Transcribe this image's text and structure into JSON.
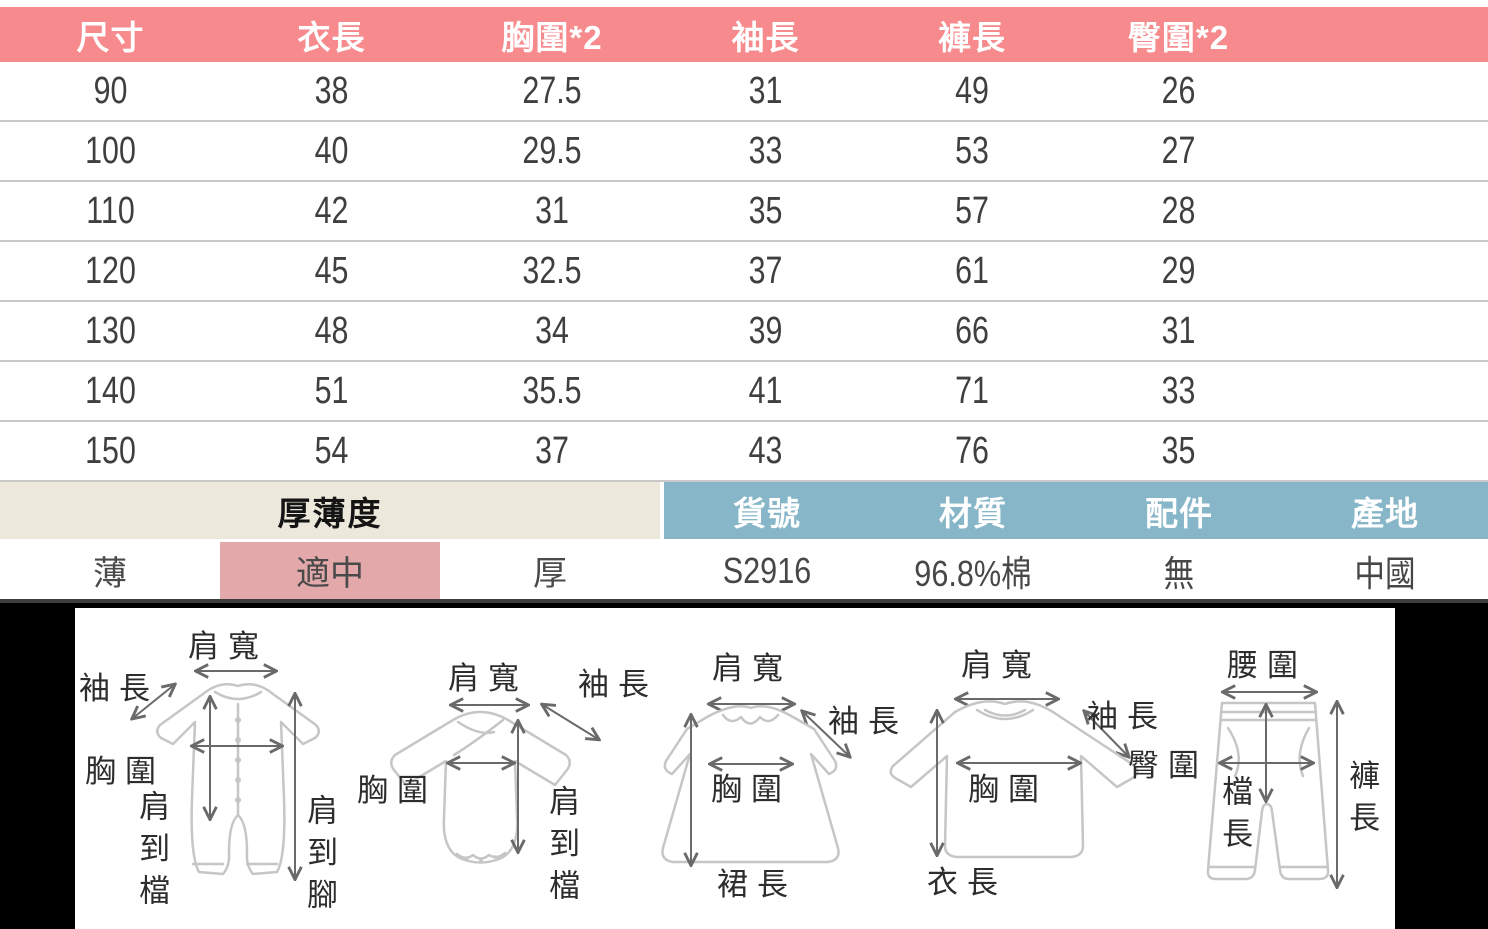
{
  "size_table": {
    "headers": [
      "尺寸",
      "衣長",
      "胸圍*2",
      "袖長",
      "褲長",
      "臀圍*2"
    ],
    "rows": [
      [
        "90",
        "38",
        "27.5",
        "31",
        "49",
        "26"
      ],
      [
        "100",
        "40",
        "29.5",
        "33",
        "53",
        "27"
      ],
      [
        "110",
        "42",
        "31",
        "35",
        "57",
        "28"
      ],
      [
        "120",
        "45",
        "32.5",
        "37",
        "61",
        "29"
      ],
      [
        "130",
        "48",
        "34",
        "39",
        "66",
        "31"
      ],
      [
        "140",
        "51",
        "35.5",
        "41",
        "71",
        "33"
      ],
      [
        "150",
        "54",
        "37",
        "43",
        "76",
        "35"
      ]
    ]
  },
  "thickness": {
    "title": "厚薄度",
    "options": [
      {
        "label": "薄",
        "selected": false
      },
      {
        "label": "適中",
        "selected": true
      },
      {
        "label": "厚",
        "selected": false
      }
    ]
  },
  "product_info": {
    "headers": [
      "貨號",
      "材質",
      "配件",
      "產地"
    ],
    "values": [
      "S2916",
      "96.8%棉",
      "無",
      "中國"
    ]
  },
  "diagrams": [
    {
      "garment": "romper",
      "labels": {
        "shoulder_width": "肩寬",
        "sleeve_length": "袖長",
        "chest": "胸圍",
        "shoulder_to_crotch": "肩到檔",
        "shoulder_to_foot": "肩到腳"
      }
    },
    {
      "garment": "bodysuit",
      "labels": {
        "shoulder_width": "肩寬",
        "sleeve_length": "袖長",
        "chest": "胸圍",
        "shoulder_to_crotch": "肩到檔"
      }
    },
    {
      "garment": "dress",
      "labels": {
        "shoulder_width": "肩寬",
        "sleeve_length": "袖長",
        "chest": "胸圍",
        "skirt_length": "裙長"
      }
    },
    {
      "garment": "top",
      "labels": {
        "shoulder_width": "肩寬",
        "sleeve_length": "袖長",
        "chest": "胸圍",
        "clothing_length": "衣長"
      }
    },
    {
      "garment": "pants",
      "labels": {
        "waist": "腰圍",
        "hip": "臀圍",
        "crotch_length": "檔長",
        "pants_length": "褲長"
      }
    }
  ],
  "colors": {
    "header_pink": "#F68A8C",
    "thickness_bg": "#ECE9DC",
    "selected_pink": "#E2A8AA",
    "info_blue": "#86B6C8",
    "section_bg": "#000000"
  }
}
